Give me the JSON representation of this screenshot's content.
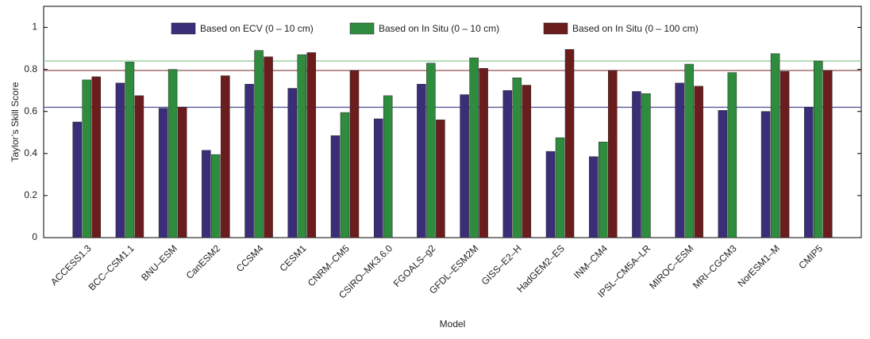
{
  "chart_data": {
    "type": "bar",
    "x_label": "Model",
    "y_label": "Taylor’s Skill Score",
    "categories": [
      "ACCESS1.3",
      "BCC–CSM1.1",
      "BNU–ESM",
      "CanESM2",
      "CCSM4",
      "CESM1",
      "CNRM–CM5",
      "CSIRO–MK3.6.0",
      "FGOALS–g2",
      "GFDL–ESM2M",
      "GISS–E2–H",
      "HadGEM2–ES",
      "INM–CM4",
      "IPSL–CM5A–LR",
      "MIROC–ESM",
      "MRI–CGCM3",
      "NorESM1–M",
      "CMIP5"
    ],
    "series": [
      {
        "name": "Based on ECV (0 – 10 cm)",
        "color": "#3a2e78",
        "reference_line": 0.62,
        "reference_color": "#5a5a9a",
        "values": [
          0.55,
          0.735,
          0.615,
          0.415,
          0.73,
          0.71,
          0.485,
          0.565,
          0.73,
          0.68,
          0.7,
          0.41,
          0.385,
          0.695,
          0.735,
          0.605,
          0.6,
          0.62
        ]
      },
      {
        "name": "Based on In Situ (0 – 10 cm)",
        "color": "#2f8c3f",
        "reference_line": 0.84,
        "reference_color": "#86c890",
        "values": [
          0.75,
          0.835,
          0.8,
          0.395,
          0.89,
          0.87,
          0.595,
          0.675,
          0.83,
          0.855,
          0.76,
          0.475,
          0.455,
          0.685,
          0.825,
          0.785,
          0.875,
          0.84
        ]
      },
      {
        "name": "Based on In Situ (0 – 100 cm)",
        "color": "#6b1d1d",
        "reference_line": 0.795,
        "reference_color": "#8f5050",
        "values": [
          0.765,
          0.675,
          0.62,
          0.77,
          0.86,
          0.88,
          0.795,
          null,
          0.56,
          0.805,
          0.725,
          0.895,
          0.795,
          null,
          0.72,
          null,
          0.79,
          0.795
        ]
      }
    ],
    "ylim": [
      0,
      1.1
    ],
    "yticks": [
      0,
      0.2,
      0.4,
      0.6,
      0.8,
      1
    ]
  }
}
